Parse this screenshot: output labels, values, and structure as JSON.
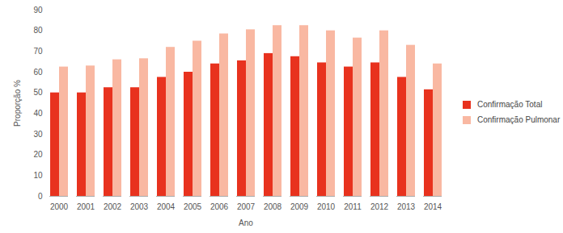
{
  "chart_data": {
    "type": "bar",
    "x_label": "Ano",
    "y_label": "Proporção %",
    "categories": [
      "2000",
      "2001",
      "2002",
      "2003",
      "2004",
      "2005",
      "2006",
      "2007",
      "2008",
      "2009",
      "2010",
      "2011",
      "2012",
      "2013",
      "2014"
    ],
    "series": [
      {
        "name": "Confirmação Total",
        "color": "#e8321e",
        "values": [
          50,
          50,
          52.5,
          52.5,
          57.5,
          60,
          64,
          65.5,
          69,
          67.5,
          64.5,
          62.5,
          64.5,
          57.5,
          51.5
        ]
      },
      {
        "name": "Confirmação Pulmonar",
        "color": "#f9b8a2",
        "values": [
          62.5,
          63,
          66,
          66.5,
          72,
          75,
          78.5,
          80.5,
          82.5,
          82.5,
          80,
          76.5,
          80,
          73,
          64
        ]
      }
    ],
    "ylim": [
      0,
      90
    ],
    "yticks": [
      0,
      10,
      20,
      30,
      40,
      50,
      60,
      70,
      80,
      90
    ],
    "grid": false,
    "legend": "right"
  }
}
